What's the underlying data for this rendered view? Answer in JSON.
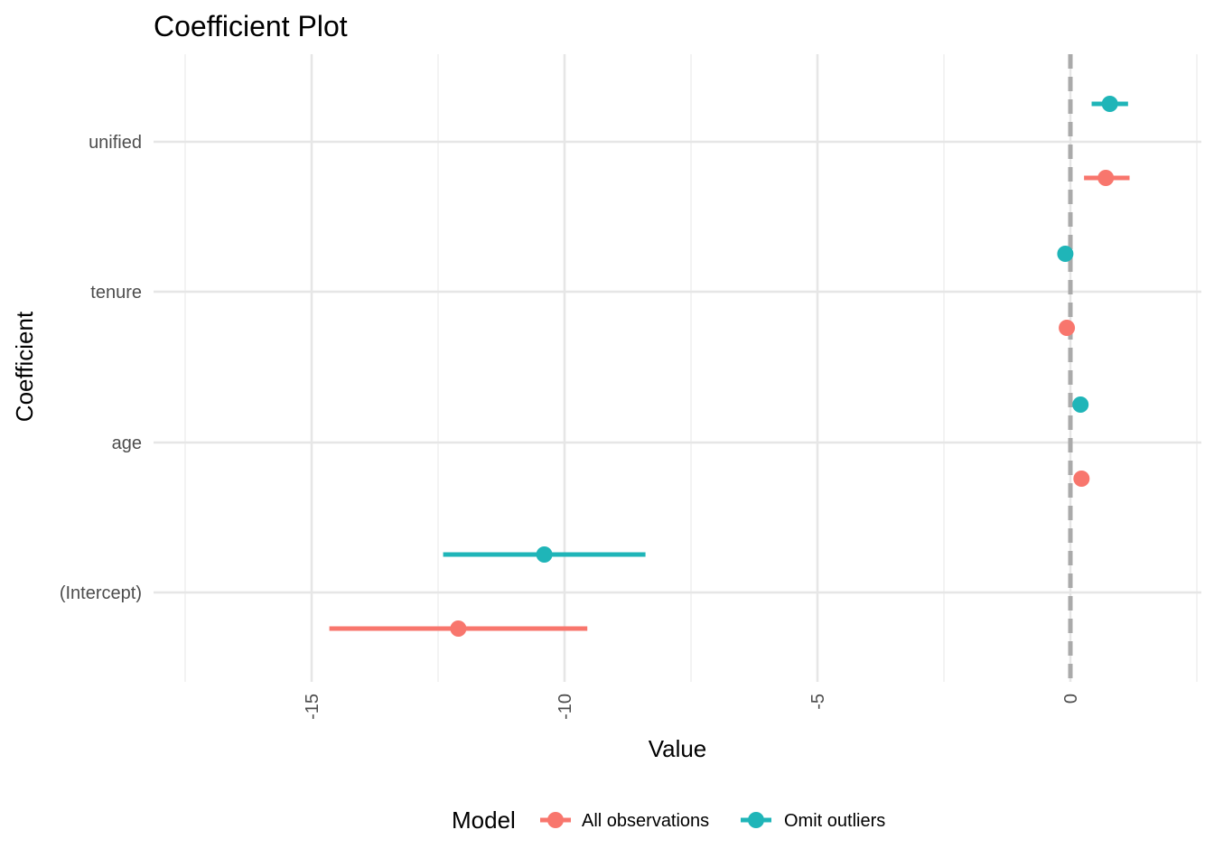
{
  "chart_data": {
    "type": "coefficient-plot",
    "title": "Coefficient Plot",
    "xlabel": "Value",
    "ylabel": "Coefficient",
    "xlim": [
      -18.0,
      2.6
    ],
    "x_ticks": [
      -15,
      -10,
      -5,
      0
    ],
    "x_tick_labels": [
      "-15",
      "-10",
      "-5",
      "0"
    ],
    "x_minor_ticks": [
      -17.5,
      -12.5,
      -7.5,
      -2.5,
      2.5
    ],
    "categories": [
      "(Intercept)",
      "age",
      "tenure",
      "unified"
    ],
    "reference_line": {
      "x": 0,
      "style": "dashed",
      "color": "#aaaaaa"
    },
    "grid": true,
    "legend": {
      "title": "Model",
      "position": "bottom"
    },
    "series": [
      {
        "name": "All observations",
        "color": "#f8766d",
        "estimates": [
          -12.1,
          0.22,
          -0.07,
          0.7
        ],
        "lower": [
          -14.65,
          0.22,
          -0.07,
          0.27
        ],
        "upper": [
          -9.55,
          0.22,
          -0.07,
          1.17
        ]
      },
      {
        "name": "Omit outliers",
        "color": "#1fb5b8",
        "estimates": [
          -10.4,
          0.2,
          -0.1,
          0.78
        ],
        "lower": [
          -12.4,
          0.2,
          -0.1,
          0.42
        ],
        "upper": [
          -8.4,
          0.2,
          -0.1,
          1.14
        ]
      }
    ]
  }
}
